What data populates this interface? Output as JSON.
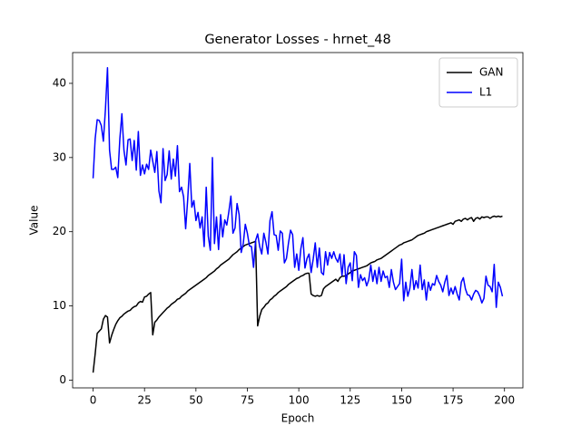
{
  "chart_data": {
    "type": "line",
    "title": "Generator Losses - hrnet_48",
    "xlabel": "Epoch",
    "ylabel": "Value",
    "x": [
      0,
      1,
      2,
      3,
      4,
      5,
      6,
      7,
      8,
      9,
      10,
      11,
      12,
      13,
      14,
      15,
      16,
      17,
      18,
      19,
      20,
      21,
      22,
      23,
      24,
      25,
      26,
      27,
      28,
      29,
      30,
      31,
      32,
      33,
      34,
      35,
      36,
      37,
      38,
      39,
      40,
      41,
      42,
      43,
      44,
      45,
      46,
      47,
      48,
      49,
      50,
      51,
      52,
      53,
      54,
      55,
      56,
      57,
      58,
      59,
      60,
      61,
      62,
      63,
      64,
      65,
      66,
      67,
      68,
      69,
      70,
      71,
      72,
      73,
      74,
      75,
      76,
      77,
      78,
      79,
      80,
      81,
      82,
      83,
      84,
      85,
      86,
      87,
      88,
      89,
      90,
      91,
      92,
      93,
      94,
      95,
      96,
      97,
      98,
      99,
      100,
      101,
      102,
      103,
      104,
      105,
      106,
      107,
      108,
      109,
      110,
      111,
      112,
      113,
      114,
      115,
      116,
      117,
      118,
      119,
      120,
      121,
      122,
      123,
      124,
      125,
      126,
      127,
      128,
      129,
      130,
      131,
      132,
      133,
      134,
      135,
      136,
      137,
      138,
      139,
      140,
      141,
      142,
      143,
      144,
      145,
      146,
      147,
      148,
      149,
      150,
      151,
      152,
      153,
      154,
      155,
      156,
      157,
      158,
      159,
      160,
      161,
      162,
      163,
      164,
      165,
      166,
      167,
      168,
      169,
      170,
      171,
      172,
      173,
      174,
      175,
      176,
      177,
      178,
      179,
      180,
      181,
      182,
      183,
      184,
      185,
      186,
      187,
      188,
      189,
      190,
      191,
      192,
      193,
      194,
      195,
      196,
      197,
      198,
      199
    ],
    "series": [
      {
        "name": "GAN",
        "color": "#000000",
        "values": [
          1.0,
          3.5,
          6.3,
          6.6,
          6.9,
          8.2,
          8.7,
          8.5,
          5.0,
          6.0,
          6.8,
          7.5,
          8.0,
          8.4,
          8.6,
          8.9,
          9.1,
          9.3,
          9.4,
          9.7,
          9.9,
          10.0,
          10.4,
          10.6,
          10.5,
          11.2,
          11.3,
          11.6,
          11.8,
          6.1,
          7.8,
          8.1,
          8.5,
          8.8,
          9.1,
          9.4,
          9.7,
          9.9,
          10.2,
          10.4,
          10.6,
          10.9,
          11.0,
          11.3,
          11.5,
          11.7,
          12.0,
          12.2,
          12.4,
          12.6,
          12.8,
          13.0,
          13.2,
          13.4,
          13.6,
          13.8,
          14.1,
          14.3,
          14.5,
          14.7,
          15.0,
          15.2,
          15.5,
          15.7,
          15.9,
          16.1,
          16.3,
          16.6,
          16.9,
          17.1,
          17.3,
          17.6,
          17.8,
          18.0,
          18.2,
          18.3,
          18.4,
          18.5,
          18.6,
          18.7,
          7.3,
          8.6,
          9.5,
          9.8,
          10.2,
          10.4,
          10.8,
          11.0,
          11.3,
          11.5,
          11.8,
          12.0,
          12.2,
          12.4,
          12.6,
          12.9,
          13.1,
          13.3,
          13.5,
          13.7,
          13.8,
          14.0,
          14.1,
          14.3,
          14.4,
          14.4,
          11.6,
          11.4,
          11.3,
          11.4,
          11.3,
          11.4,
          12.3,
          12.6,
          12.8,
          13.0,
          13.2,
          13.4,
          13.6,
          13.3,
          13.8,
          14.0,
          14.0,
          14.1,
          14.3,
          14.5,
          14.7,
          14.8,
          14.9,
          15.0,
          15.1,
          15.2,
          15.3,
          15.4,
          15.6,
          15.8,
          15.9,
          16.0,
          16.2,
          16.3,
          16.4,
          16.6,
          16.8,
          17.0,
          17.2,
          17.4,
          17.6,
          17.8,
          18.0,
          18.2,
          18.3,
          18.5,
          18.6,
          18.7,
          18.8,
          18.9,
          19.1,
          19.3,
          19.5,
          19.6,
          19.7,
          19.8,
          20.0,
          20.1,
          20.2,
          20.3,
          20.4,
          20.5,
          20.6,
          20.7,
          20.8,
          20.9,
          21.0,
          21.1,
          21.2,
          21.0,
          21.4,
          21.5,
          21.6,
          21.4,
          21.7,
          21.8,
          21.6,
          21.8,
          21.9,
          21.4,
          21.8,
          21.9,
          21.7,
          22.0,
          21.9,
          22.0,
          22.0,
          21.8,
          22.0,
          22.1,
          22.0,
          22.1,
          22.0,
          22.1
        ]
      },
      {
        "name": "L1",
        "color": "#0000ff",
        "values": [
          27.2,
          32.5,
          35.1,
          35.0,
          34.3,
          32.2,
          36.5,
          42.1,
          31.0,
          28.4,
          28.4,
          28.7,
          27.3,
          32.5,
          35.9,
          31.0,
          29.0,
          32.4,
          32.5,
          29.6,
          32.3,
          28.3,
          33.5,
          27.6,
          29.0,
          27.8,
          29.1,
          28.4,
          31.0,
          29.5,
          28.0,
          30.8,
          25.5,
          23.9,
          31.2,
          26.9,
          27.7,
          30.9,
          27.1,
          29.8,
          27.5,
          31.6,
          25.4,
          26.0,
          24.7,
          20.4,
          24.4,
          29.2,
          23.3,
          24.2,
          21.5,
          22.6,
          20.5,
          22.0,
          18.0,
          26.0,
          19.4,
          17.5,
          30.0,
          18.4,
          22.0,
          17.6,
          22.3,
          19.3,
          21.6,
          20.9,
          22.7,
          24.8,
          19.8,
          20.5,
          23.8,
          22.3,
          17.2,
          18.4,
          21.0,
          19.8,
          18.1,
          18.0,
          15.2,
          18.8,
          19.7,
          18.0,
          17.0,
          19.8,
          18.6,
          17.0,
          21.5,
          22.7,
          19.6,
          19.5,
          17.5,
          20.1,
          19.8,
          15.8,
          16.4,
          18.5,
          20.2,
          19.6,
          15.2,
          17.0,
          14.8,
          17.7,
          19.2,
          15.1,
          16.4,
          17.0,
          14.5,
          16.3,
          18.5,
          15.2,
          17.8,
          14.5,
          14.2,
          17.3,
          15.5,
          17.2,
          16.4,
          17.3,
          16.4,
          15.9,
          17.0,
          14.1,
          16.9,
          13.0,
          15.2,
          15.8,
          13.4,
          17.3,
          16.8,
          12.5,
          14.2,
          13.4,
          13.8,
          12.7,
          13.5,
          15.5,
          13.3,
          14.8,
          13.0,
          15.2,
          13.3,
          14.7,
          13.8,
          14.0,
          12.5,
          14.9,
          13.2,
          12.2,
          12.6,
          13.0,
          16.3,
          10.7,
          13.2,
          11.3,
          12.4,
          14.9,
          12.2,
          13.4,
          12.4,
          15.5,
          12.2,
          13.5,
          10.8,
          13.2,
          12.1,
          13.0,
          12.8,
          14.1,
          13.3,
          12.8,
          11.9,
          13.2,
          14.1,
          11.4,
          12.4,
          11.6,
          12.6,
          11.6,
          10.8,
          13.2,
          13.8,
          12.3,
          11.5,
          11.4,
          10.8,
          11.6,
          12.1,
          11.9,
          11.3,
          10.4,
          11.0,
          14.0,
          12.8,
          12.6,
          11.9,
          15.6,
          9.8,
          13.2,
          12.5,
          11.3
        ]
      }
    ],
    "xlim": [
      -9.95,
      208.95
    ],
    "xticks": [
      0,
      25,
      50,
      75,
      100,
      125,
      150,
      175,
      200
    ],
    "ylim": [
      -1.05,
      44.15
    ],
    "yticks": [
      0,
      10,
      20,
      30,
      40
    ],
    "legend": "upper right",
    "grid": false
  }
}
